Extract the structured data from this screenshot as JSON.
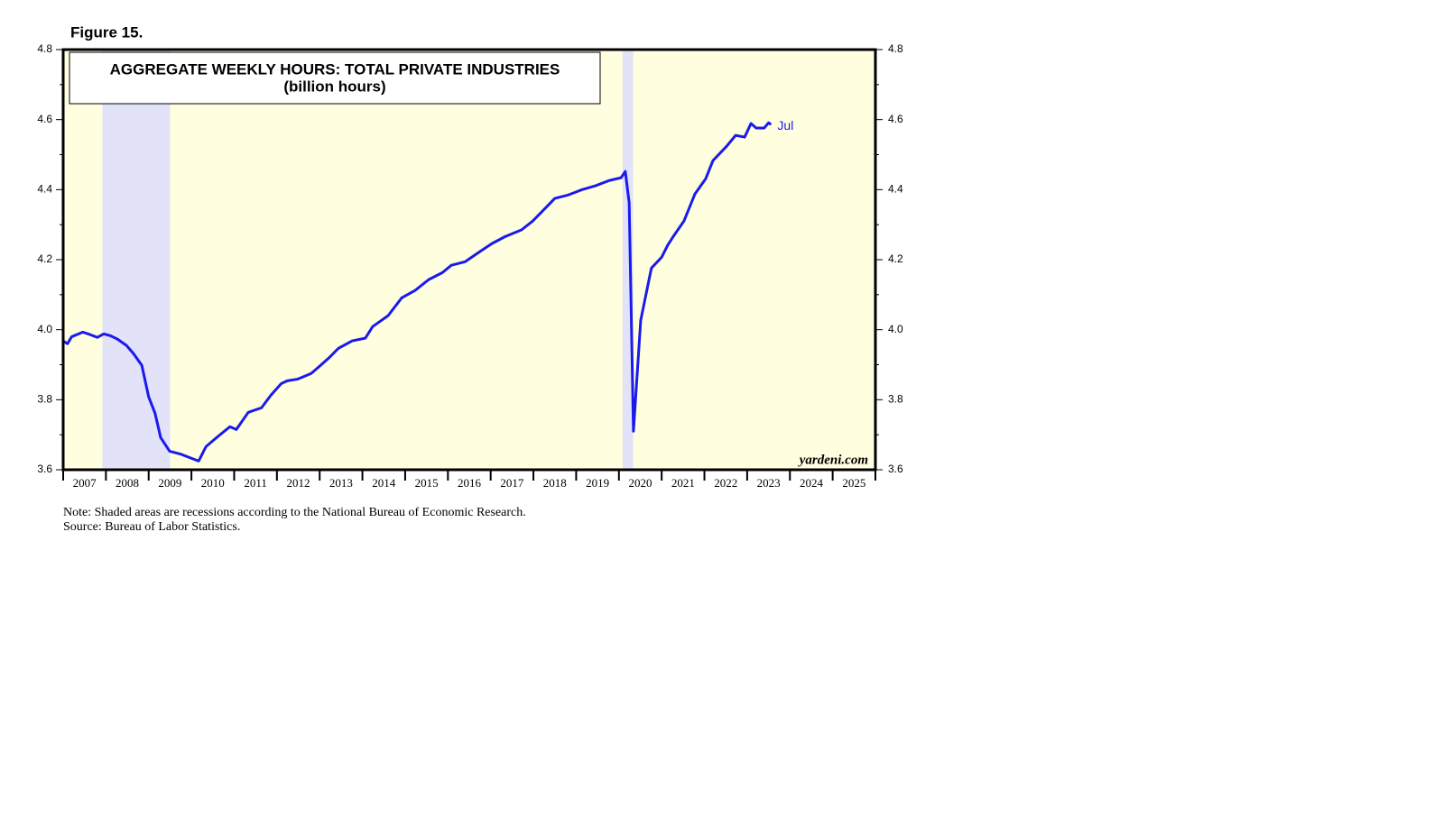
{
  "chart_data": {
    "type": "line",
    "figure_label": "Figure 15.",
    "title": "AGGREGATE WEEKLY HOURS: TOTAL PRIVATE INDUSTRIES",
    "subtitle": "(billion hours)",
    "source_mark": "yardeni.com",
    "notes": [
      "Note: Shaded areas are recessions according to the National Bureau of Economic Research.",
      "Source: Bureau of Labor Statistics."
    ],
    "end_label": "Jul",
    "recessions": [
      [
        2007.917,
        2009.5
      ],
      [
        2020.083,
        2020.333
      ]
    ],
    "recession_color": "#e2e2f8",
    "background": "#ffffe0",
    "xlim": [
      2007,
      2026
    ],
    "xticks": [
      2007,
      2008,
      2009,
      2010,
      2011,
      2012,
      2013,
      2014,
      2015,
      2016,
      2017,
      2018,
      2019,
      2020,
      2021,
      2022,
      2023,
      2024,
      2025,
      2026
    ],
    "year_labels": [
      2007,
      2008,
      2009,
      2010,
      2011,
      2012,
      2013,
      2014,
      2015,
      2016,
      2017,
      2018,
      2019,
      2020,
      2021,
      2022,
      2023,
      2024,
      2025
    ],
    "ylim": [
      3.6,
      4.8
    ],
    "yticks": [
      3.6,
      3.8,
      {
        "value": 4,
        "label": "4.0"
      },
      4.2,
      4.4,
      4.6,
      4.8
    ],
    "minor_yticks": [
      3.7,
      3.9,
      4.1,
      4.3,
      4.5,
      4.7
    ],
    "series": [
      {
        "name": "Aggregate weekly hours",
        "color": "#1a1aee",
        "x": [
          2007.0,
          2007.1,
          2007.2,
          2007.46,
          2007.63,
          2007.8,
          2007.95,
          2008.1,
          2008.27,
          2008.48,
          2008.65,
          2008.84,
          2009.0,
          2009.15,
          2009.28,
          2009.49,
          2009.74,
          2009.95,
          2010.17,
          2010.34,
          2010.59,
          2010.9,
          2011.05,
          2011.33,
          2011.64,
          2011.86,
          2012.1,
          2012.24,
          2012.49,
          2012.8,
          2013.02,
          2013.23,
          2013.44,
          2013.76,
          2014.07,
          2014.24,
          2014.6,
          2014.92,
          2015.23,
          2015.55,
          2015.87,
          2016.08,
          2016.4,
          2016.71,
          2017.03,
          2017.34,
          2017.72,
          2017.98,
          2018.19,
          2018.5,
          2018.82,
          2019.14,
          2019.45,
          2019.77,
          2020.05,
          2020.15,
          2020.24,
          2020.34,
          2020.51,
          2020.76,
          2021.0,
          2021.14,
          2021.27,
          2021.52,
          2021.78,
          2022.03,
          2022.2,
          2022.52,
          2022.73,
          2022.94,
          2023.09,
          2023.21,
          2023.4,
          2023.5,
          2023.56
        ],
        "values": [
          3.968,
          3.96,
          3.98,
          3.993,
          3.986,
          3.978,
          3.988,
          3.983,
          3.973,
          3.955,
          3.931,
          3.898,
          3.808,
          3.761,
          3.692,
          3.653,
          3.645,
          3.635,
          3.625,
          3.666,
          3.692,
          3.723,
          3.715,
          3.764,
          3.777,
          3.813,
          3.846,
          3.854,
          3.859,
          3.875,
          3.898,
          3.921,
          3.947,
          3.968,
          3.976,
          4.009,
          4.04,
          4.091,
          4.112,
          4.143,
          4.163,
          4.184,
          4.194,
          4.22,
          4.246,
          4.266,
          4.285,
          4.31,
          4.336,
          4.375,
          4.385,
          4.4,
          4.411,
          4.426,
          4.434,
          4.452,
          4.362,
          3.71,
          4.027,
          4.176,
          4.207,
          4.241,
          4.266,
          4.31,
          4.388,
          4.431,
          4.483,
          4.524,
          4.555,
          4.55,
          4.589,
          4.576,
          4.576,
          4.591,
          4.586
        ]
      }
    ]
  }
}
